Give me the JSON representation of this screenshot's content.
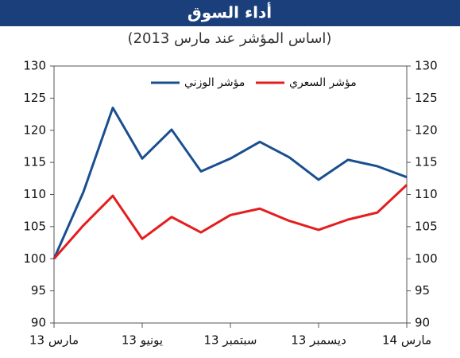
{
  "chart_data": {
    "type": "line",
    "title": "أداء السوق",
    "subtitle": "(اساس المؤشر عند مارس 2013)",
    "categories": [
      "مارس 13",
      null,
      null,
      "يونيو 13",
      null,
      null,
      "سبتمبر 13",
      null,
      null,
      "ديسمبر 13",
      null,
      null,
      "مارس 14"
    ],
    "series": [
      {
        "name": "مؤشر الوزني",
        "color": "#1a4f8f",
        "values": [
          100,
          110.4,
          123.5,
          115.6,
          120.1,
          113.6,
          115.6,
          118.2,
          115.8,
          112.3,
          115.4,
          114.4,
          112.7
        ]
      },
      {
        "name": "مؤشر السعري",
        "color": "#e41e1e",
        "values": [
          100,
          105.2,
          109.8,
          103.1,
          106.5,
          104.1,
          106.8,
          107.8,
          105.9,
          104.5,
          106.1,
          107.2,
          111.5
        ]
      }
    ],
    "ylim": [
      90,
      130
    ],
    "yticks": [
      90,
      95,
      100,
      105,
      110,
      115,
      120,
      125,
      130
    ],
    "grid": false
  }
}
